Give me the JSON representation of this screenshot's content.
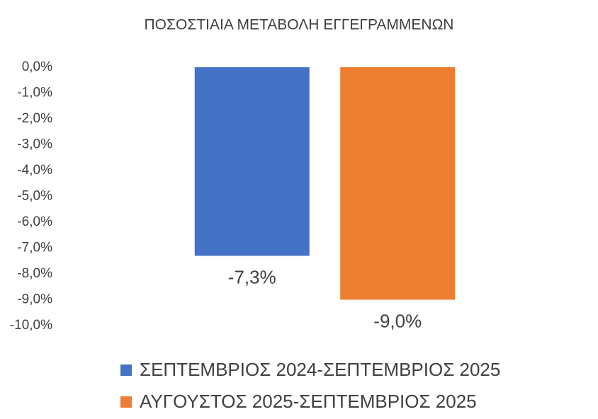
{
  "chart_data": {
    "type": "bar",
    "title": "ΠΟΣΟΣΤΙΑΙΑ ΜΕΤΑΒΟΛΗ ΕΓΓΕΓΡΑΜΜΕΝΩΝ",
    "categories": [
      null
    ],
    "series": [
      {
        "name": "ΣΕΠΤΕΜΒΡΙΟΣ 2024-ΣΕΠΤΕΜΒΡΙΟΣ 2025",
        "color": "#4472c4",
        "values": [
          -7.3
        ],
        "value_labels": [
          "-7,3%"
        ]
      },
      {
        "name": "ΑΥΓΟΥΣΤΟΣ 2025-ΣΕΠΤΕΜΒΡΙΟΣ 2025",
        "color": "#ed7d31",
        "values": [
          -9.0
        ],
        "value_labels": [
          "-9,0%"
        ]
      }
    ],
    "ylim": [
      -10,
      0
    ],
    "yticks": [
      {
        "value": 0,
        "label": "0,0%"
      },
      {
        "value": -1,
        "label": "-1,0%"
      },
      {
        "value": -2,
        "label": "-2,0%"
      },
      {
        "value": -3,
        "label": "-3,0%"
      },
      {
        "value": -4,
        "label": "-4,0%"
      },
      {
        "value": -5,
        "label": "-5,0%"
      },
      {
        "value": -6,
        "label": "-6,0%"
      },
      {
        "value": -7,
        "label": "-7,0%"
      },
      {
        "value": -8,
        "label": "-8,0%"
      },
      {
        "value": -9,
        "label": "-9,0%"
      },
      {
        "value": -10,
        "label": "-10,0%"
      }
    ],
    "grid": false,
    "legend": "bottom"
  }
}
